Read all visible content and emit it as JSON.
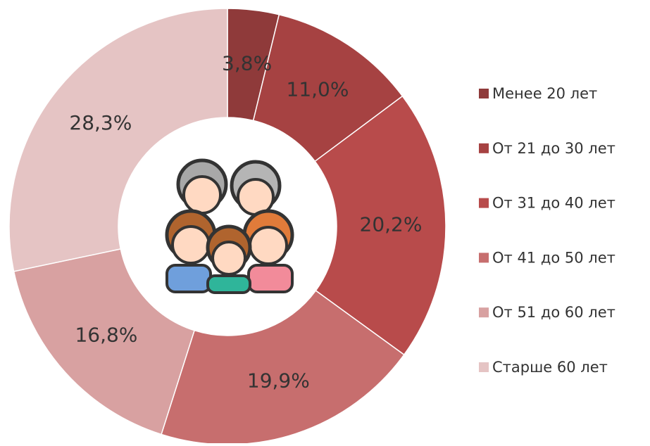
{
  "chart_data": {
    "type": "donut",
    "categories": [
      "Менее 20 лет",
      "От 21 до 30 лет",
      "От 31 до 40 лет",
      "От 41 до 50 лет",
      "От 51 до 60 лет",
      "Старше 60 лет"
    ],
    "values": [
      3.8,
      11.0,
      20.2,
      19.9,
      16.8,
      28.3
    ],
    "value_labels": [
      "3,8%",
      "11,0%",
      "20,2%",
      "19,9%",
      "16,8%",
      "28,3%"
    ],
    "colors": [
      "#8f3a3a",
      "#a64242",
      "#b84b4b",
      "#c76e6e",
      "#d8a1a1",
      "#e5c4c4"
    ],
    "legend": "right"
  }
}
